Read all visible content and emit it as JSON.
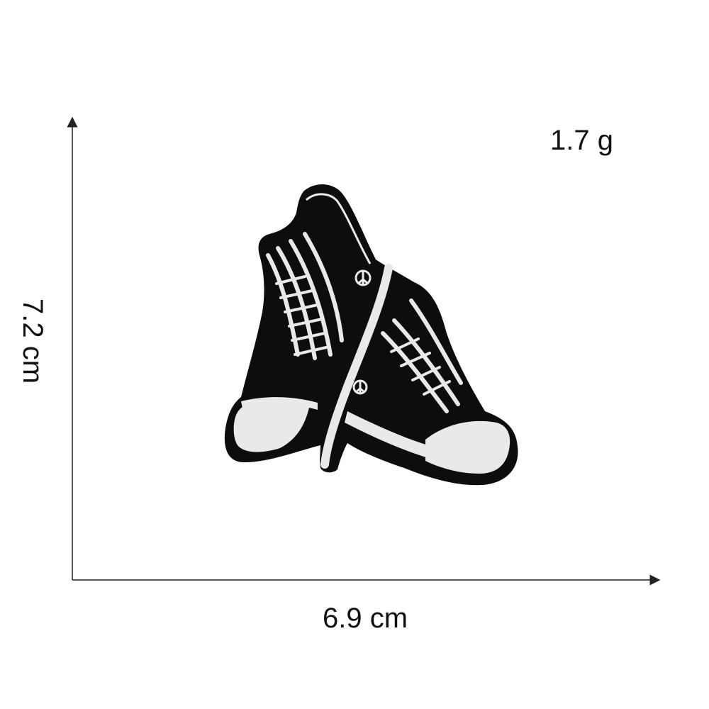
{
  "measurements": {
    "weight": "1.7 g",
    "width": "6.9 cm",
    "height": "7.2 cm"
  },
  "product": {
    "subject": "sneakers-embroidered-patch-icon",
    "colors": {
      "patch_fill": "#0d0d0d",
      "thread": "#e9e9e9",
      "axis": "#222222"
    }
  }
}
